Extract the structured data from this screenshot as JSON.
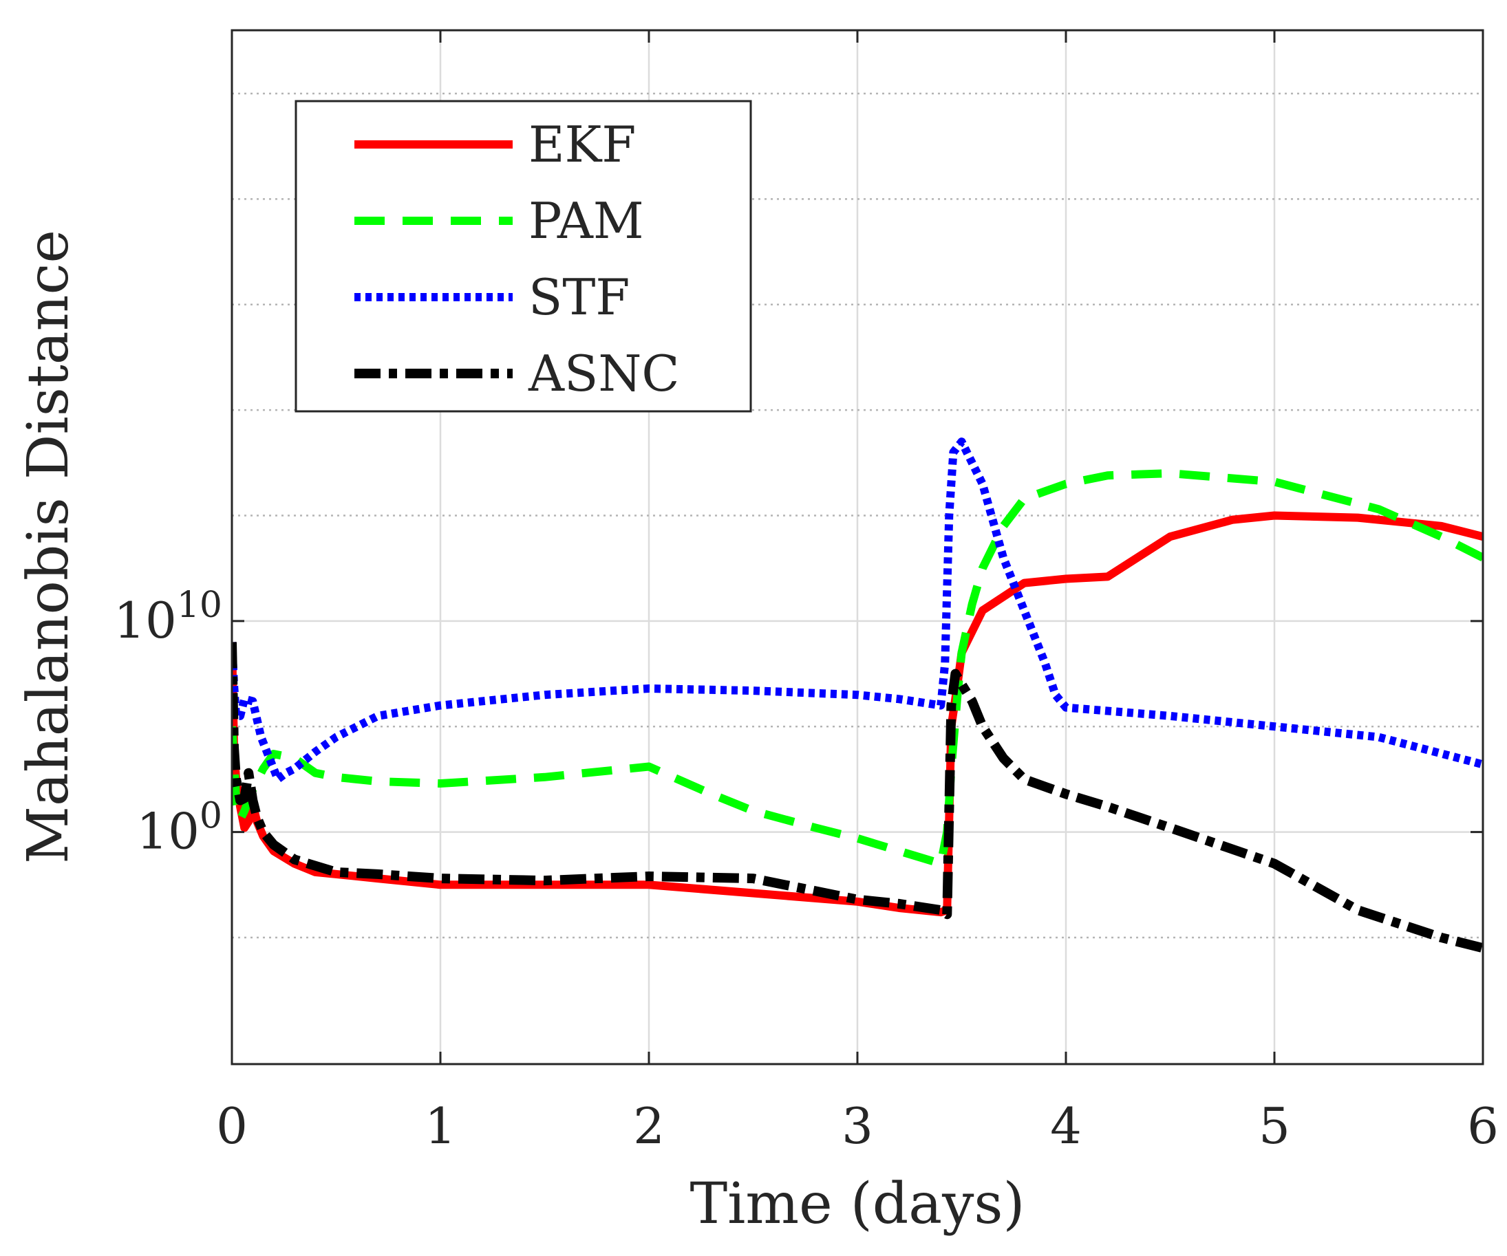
{
  "chart_data": {
    "type": "line",
    "title": "",
    "xlabel": "Time (days)",
    "ylabel": "Mahalanobis Distance",
    "yscale": "log",
    "xlim": [
      0,
      6
    ],
    "ylim_log10": [
      -11,
      38
    ],
    "x_ticks": [
      0,
      1,
      2,
      3,
      4,
      5,
      6
    ],
    "x_tick_labels": [
      "0",
      "1",
      "2",
      "3",
      "4",
      "5",
      "6"
    ],
    "y_ticks_log10": [
      0,
      10
    ],
    "y_tick_labels": [
      {
        "base": "10",
        "exp": "0"
      },
      {
        "base": "10",
        "exp": "10"
      }
    ],
    "y_minor_grid_log10": [
      -5,
      5,
      15,
      20,
      25,
      30,
      35
    ],
    "grid": true,
    "legend": {
      "position": "top-left",
      "entries": [
        "EKF",
        "PAM",
        "STF",
        "ASNC"
      ]
    },
    "series": [
      {
        "name": "EKF",
        "color": "#ff0000",
        "style": "solid",
        "x": [
          0,
          0.01,
          0.02,
          0.04,
          0.06,
          0.08,
          0.1,
          0.12,
          0.15,
          0.2,
          0.3,
          0.4,
          0.5,
          0.7,
          1.0,
          1.5,
          2.0,
          2.5,
          3.0,
          3.2,
          3.4,
          3.43,
          3.45,
          3.48,
          3.5,
          3.6,
          3.8,
          4.0,
          4.2,
          4.5,
          4.8,
          5.0,
          5.4,
          5.8,
          6.0
        ],
        "log10_values": [
          9.0,
          4.0,
          2.5,
          1.2,
          0.2,
          0.5,
          1.3,
          0.5,
          -0.2,
          -0.9,
          -1.5,
          -1.9,
          -2.0,
          -2.2,
          -2.5,
          -2.5,
          -2.5,
          -2.9,
          -3.3,
          -3.6,
          -3.8,
          -3.7,
          5.0,
          7.0,
          8.5,
          10.5,
          11.8,
          12.0,
          12.1,
          14.0,
          14.8,
          15.0,
          14.9,
          14.5,
          14.0
        ]
      },
      {
        "name": "PAM",
        "color": "#00ff00",
        "style": "dashed",
        "x": [
          0,
          0.01,
          0.02,
          0.04,
          0.06,
          0.1,
          0.15,
          0.2,
          0.3,
          0.4,
          0.5,
          0.7,
          1.0,
          1.5,
          2.0,
          2.3,
          2.5,
          2.8,
          3.0,
          3.2,
          3.4,
          3.43,
          3.45,
          3.48,
          3.5,
          3.55,
          3.6,
          3.7,
          3.8,
          4.0,
          4.2,
          4.5,
          5.0,
          5.5,
          5.8,
          6.0
        ],
        "log10_values": [
          5.0,
          3.5,
          1.5,
          0.6,
          1.0,
          2.0,
          3.0,
          3.7,
          3.5,
          2.8,
          2.6,
          2.4,
          2.3,
          2.6,
          3.1,
          1.8,
          1.0,
          0.2,
          -0.3,
          -0.9,
          -1.5,
          0.0,
          3.0,
          6.5,
          8.5,
          10.8,
          12.5,
          14.5,
          15.8,
          16.5,
          16.9,
          17.0,
          16.6,
          15.3,
          14.0,
          13.0
        ]
      },
      {
        "name": "STF",
        "color": "#0000ff",
        "style": "dotted",
        "x": [
          0,
          0.01,
          0.02,
          0.04,
          0.06,
          0.1,
          0.14,
          0.18,
          0.22,
          0.26,
          0.3,
          0.4,
          0.5,
          0.7,
          1.0,
          1.5,
          2.0,
          2.5,
          3.0,
          3.2,
          3.4,
          3.42,
          3.44,
          3.46,
          3.5,
          3.6,
          3.7,
          3.8,
          3.9,
          3.95,
          4.0,
          4.5,
          5.0,
          5.5,
          6.0
        ],
        "log10_values": [
          9.0,
          7.0,
          5.5,
          5.5,
          6.3,
          6.2,
          4.5,
          3.5,
          2.5,
          2.8,
          3.0,
          3.8,
          4.5,
          5.5,
          6.0,
          6.5,
          6.8,
          6.7,
          6.5,
          6.3,
          6.0,
          8.0,
          15.0,
          18.0,
          18.5,
          16.5,
          13.0,
          10.5,
          8.0,
          6.5,
          5.9,
          5.5,
          5.0,
          4.5,
          3.2
        ]
      },
      {
        "name": "ASNC",
        "color": "#000000",
        "style": "dashdot",
        "x": [
          0,
          0.01,
          0.02,
          0.04,
          0.06,
          0.08,
          0.1,
          0.12,
          0.15,
          0.2,
          0.3,
          0.4,
          0.5,
          0.7,
          1.0,
          1.5,
          2.0,
          2.5,
          3.0,
          3.2,
          3.4,
          3.43,
          3.45,
          3.47,
          3.5,
          3.55,
          3.6,
          3.7,
          3.8,
          4.0,
          4.2,
          4.5,
          5.0,
          5.4,
          5.8,
          6.0
        ],
        "log10_values": [
          9.0,
          4.0,
          2.5,
          1.5,
          1.6,
          2.8,
          1.5,
          0.7,
          0.0,
          -0.6,
          -1.3,
          -1.6,
          -1.9,
          -2.0,
          -2.2,
          -2.3,
          -2.1,
          -2.2,
          -3.2,
          -3.4,
          -3.7,
          -3.9,
          6.0,
          7.5,
          7.0,
          6.2,
          5.0,
          3.5,
          2.5,
          1.8,
          1.2,
          0.2,
          -1.5,
          -3.7,
          -5.0,
          -5.5
        ]
      }
    ]
  }
}
